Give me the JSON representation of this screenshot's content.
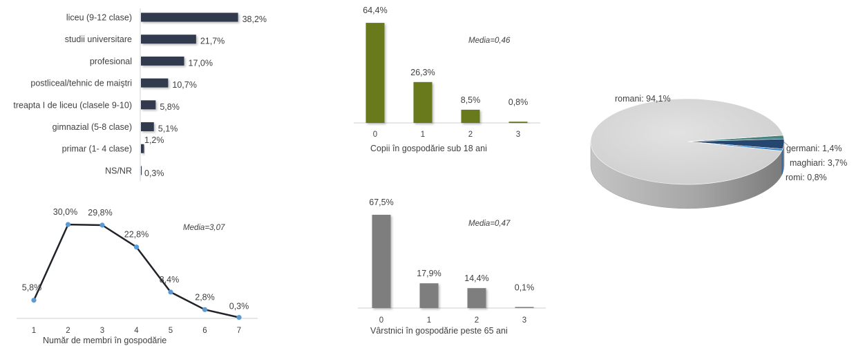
{
  "colors": {
    "edu_bar": "#323a4e",
    "children_bar": "#677a1c",
    "elderly_bar": "#7e7e7e",
    "line": "#1f2329",
    "marker": "#5b9bd5",
    "pie_main": "#d6d6d6",
    "pie_main_side": "#9a9a9a",
    "pie_germani": "#4a8480",
    "pie_maghiari": "#25466e",
    "pie_romi": "#3e86c8"
  },
  "chart_data": [
    {
      "id": "education",
      "type": "bar",
      "orientation": "horizontal",
      "categories": [
        "liceu (9-12 clase)",
        "studii universitare",
        "profesional",
        "postliceal/tehnic de maiştri",
        "treapta I de liceu (clasele 9-10)",
        "gimnazial (5-8 clase)",
        "primar (1- 4 clase)",
        "NS/NR"
      ],
      "values": [
        38.2,
        21.7,
        17.0,
        10.7,
        5.8,
        5.1,
        1.2,
        0.3
      ],
      "value_labels": [
        "38,2%",
        "21,7%",
        "17,0%",
        "10,7%",
        "5,8%",
        "5,1%",
        "1,2%",
        "0,3%"
      ]
    },
    {
      "id": "children",
      "type": "bar",
      "categories": [
        "0",
        "1",
        "2",
        "3"
      ],
      "values": [
        64.4,
        26.3,
        8.5,
        0.8
      ],
      "value_labels": [
        "64,4%",
        "26,3%",
        "8,5%",
        "0,8%"
      ],
      "xlabel": "Copii în gospodărie sub 18 ani",
      "annotation": "Media=0,46"
    },
    {
      "id": "household",
      "type": "line",
      "categories": [
        "1",
        "2",
        "3",
        "4",
        "5",
        "6",
        "7"
      ],
      "values": [
        5.8,
        30.0,
        29.8,
        22.8,
        8.4,
        2.8,
        0.3
      ],
      "value_labels": [
        "5,8%",
        "30,0%",
        "29,8%",
        "22,8%",
        "8,4%",
        "2,8%",
        "0,3%"
      ],
      "xlabel": "Număr de membri în gospodărie",
      "annotation": "Media=3,07"
    },
    {
      "id": "elderly",
      "type": "bar",
      "categories": [
        "0",
        "1",
        "2",
        "3"
      ],
      "values": [
        67.5,
        17.9,
        14.4,
        0.1
      ],
      "value_labels": [
        "67,5%",
        "17,9%",
        "14,4%",
        "0,1%"
      ],
      "xlabel": "Vârstnici în gospodărie peste 65 ani",
      "annotation": "Media=0,47"
    },
    {
      "id": "ethnicity",
      "type": "pie",
      "labels": [
        "romani",
        "germani",
        "maghiari",
        "romi"
      ],
      "values": [
        94.1,
        1.4,
        3.7,
        0.8
      ],
      "slice_labels": [
        "romani: 94,1%",
        "germani: 1,4%",
        "maghiari: 3,7%",
        "romi: 0,8%"
      ]
    }
  ]
}
